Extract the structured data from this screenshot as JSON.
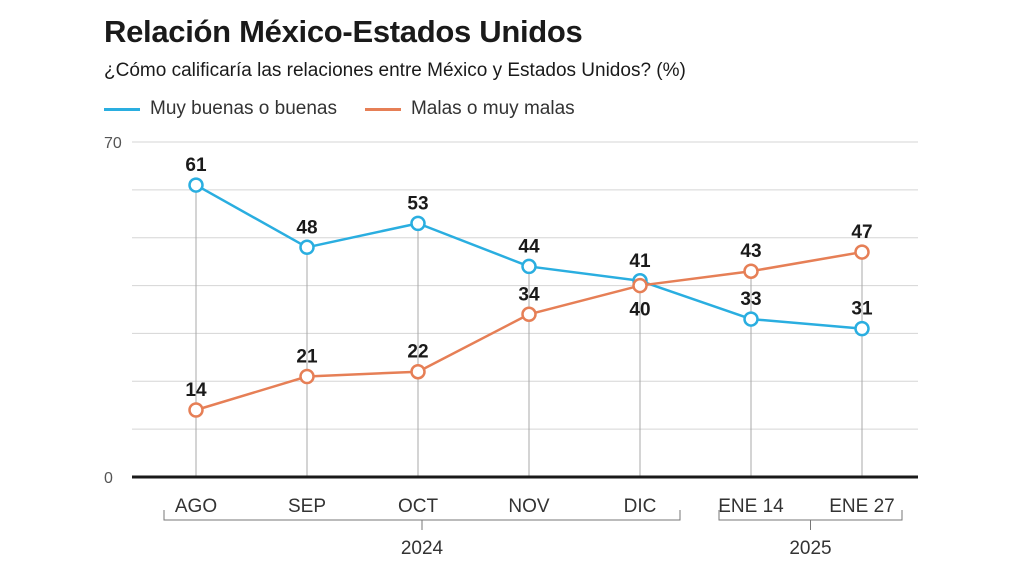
{
  "chart_data": {
    "type": "line",
    "title": "Relación México-Estados Unidos",
    "subtitle": "¿Cómo calificaría las relaciones entre México y Estados Unidos? (%)",
    "categories": [
      "AGO",
      "SEP",
      "OCT",
      "NOV",
      "DIC",
      "ENE 14",
      "ENE 27"
    ],
    "year_groups": [
      {
        "label": "2024",
        "from": 0,
        "to": 4
      },
      {
        "label": "2025",
        "from": 5,
        "to": 6
      }
    ],
    "series": [
      {
        "name": "Muy buenas o buenas",
        "color": "#2aaee0",
        "values": [
          61,
          48,
          53,
          44,
          41,
          33,
          31
        ]
      },
      {
        "name": "Malas o muy malas",
        "color": "#e67f56",
        "values": [
          14,
          21,
          22,
          34,
          40,
          43,
          47
        ]
      }
    ],
    "ylim": [
      0,
      70
    ],
    "y_ticks": [
      "0",
      "70"
    ],
    "grid": true,
    "legend": "top-left"
  }
}
